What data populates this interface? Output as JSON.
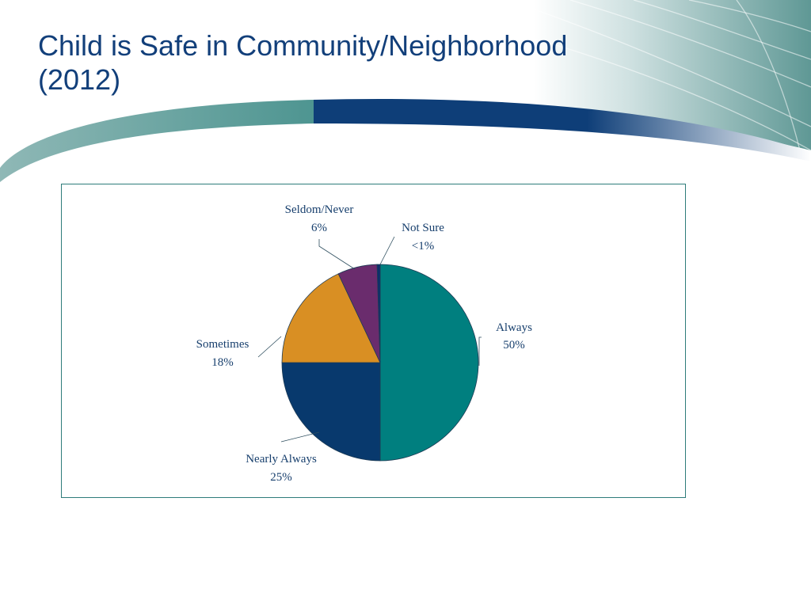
{
  "slide": {
    "title_line1": "Child is Safe in Community/Neighborhood",
    "title_line2": "(2012)"
  },
  "colors": {
    "title": "#123f7a",
    "always": "#007f7f",
    "nearly_always": "#08396d",
    "sometimes": "#d98f23",
    "seldom_never": "#6a2c6d",
    "not_sure": "#0b2f6d",
    "frame_border": "#2e7c7a",
    "label_text": "#173f6d"
  },
  "chart_data": {
    "type": "pie",
    "title": "",
    "start_angle_deg": 0,
    "direction": "clockwise",
    "slices": [
      {
        "key": "always",
        "label": "Always",
        "value": 50,
        "value_label": "50%"
      },
      {
        "key": "nearly_always",
        "label": "Nearly Always",
        "value": 25,
        "value_label": "25%"
      },
      {
        "key": "sometimes",
        "label": "Sometimes",
        "value": 18,
        "value_label": "18%"
      },
      {
        "key": "seldom_never",
        "label": "Seldom/Never",
        "value": 6.5,
        "value_label": "6%"
      },
      {
        "key": "not_sure",
        "label": "Not Sure",
        "value": 0.5,
        "value_label": "<1%"
      }
    ],
    "legend": "none"
  }
}
